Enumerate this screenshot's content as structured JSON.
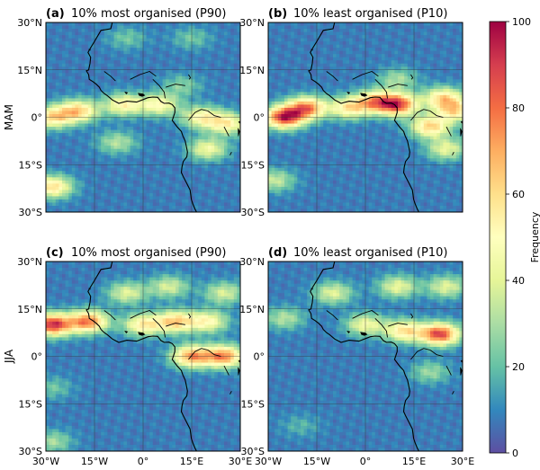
{
  "chart_data": {
    "type": "heatmap",
    "colormap": "Spectral_r",
    "colorbar": {
      "label": "Frequency",
      "min": 0,
      "max": 100,
      "ticks": [
        0,
        20,
        40,
        60,
        80,
        100
      ]
    },
    "x_ticks": [
      "30°W",
      "15°W",
      "0°",
      "15°E",
      "30°E"
    ],
    "y_ticks": [
      "30°N",
      "15°N",
      "0°",
      "15°S",
      "30°S"
    ],
    "xlim": [
      -30,
      30
    ],
    "ylim": [
      -30,
      30
    ],
    "grid": true,
    "rows": [
      {
        "label": "MAM"
      },
      {
        "label": "JJA"
      }
    ],
    "panels": [
      {
        "tag": "(a)",
        "title": "10% most organised (P90)",
        "row": 0,
        "col": 0,
        "background": 8,
        "hotspots": [
          {
            "lon": -20,
            "lat": 2,
            "value": 62
          },
          {
            "lon": -6,
            "lat": 4,
            "value": 52
          },
          {
            "lon": 5,
            "lat": 4,
            "value": 50
          },
          {
            "lon": -28,
            "lat": 0,
            "value": 58
          },
          {
            "lon": 18,
            "lat": 0,
            "value": 50
          },
          {
            "lon": 26,
            "lat": -2,
            "value": 52
          },
          {
            "lon": 20,
            "lat": -10,
            "value": 45
          },
          {
            "lon": -28,
            "lat": -22,
            "value": 60
          },
          {
            "lon": -8,
            "lat": -8,
            "value": 32
          },
          {
            "lon": 12,
            "lat": 10,
            "value": 25
          },
          {
            "lon": -5,
            "lat": 25,
            "value": 22
          },
          {
            "lon": 15,
            "lat": 25,
            "value": 22
          }
        ]
      },
      {
        "tag": "(b)",
        "title": "10% least organised (P10)",
        "row": 0,
        "col": 1,
        "background": 8,
        "hotspots": [
          {
            "lon": -25,
            "lat": 0,
            "value": 92
          },
          {
            "lon": -18,
            "lat": 3,
            "value": 75
          },
          {
            "lon": 10,
            "lat": 4,
            "value": 85
          },
          {
            "lon": 3,
            "lat": 5,
            "value": 62
          },
          {
            "lon": -5,
            "lat": 3,
            "value": 55
          },
          {
            "lon": 24,
            "lat": 6,
            "value": 58
          },
          {
            "lon": 20,
            "lat": -3,
            "value": 62
          },
          {
            "lon": 28,
            "lat": 2,
            "value": 55
          },
          {
            "lon": 25,
            "lat": -10,
            "value": 42
          },
          {
            "lon": -28,
            "lat": -20,
            "value": 35
          },
          {
            "lon": 10,
            "lat": 12,
            "value": 30
          }
        ]
      },
      {
        "tag": "(c)",
        "title": "10% most organised (P90)",
        "row": 1,
        "col": 0,
        "background": 8,
        "hotspots": [
          {
            "lon": -28,
            "lat": 10,
            "value": 92
          },
          {
            "lon": -17,
            "lat": 11,
            "value": 78
          },
          {
            "lon": 0,
            "lat": 10,
            "value": 55
          },
          {
            "lon": 10,
            "lat": 11,
            "value": 62
          },
          {
            "lon": 20,
            "lat": 11,
            "value": 50
          },
          {
            "lon": 15,
            "lat": 0,
            "value": 72
          },
          {
            "lon": 25,
            "lat": 0,
            "value": 75
          },
          {
            "lon": -5,
            "lat": 20,
            "value": 40
          },
          {
            "lon": 8,
            "lat": 22,
            "value": 38
          },
          {
            "lon": 25,
            "lat": 20,
            "value": 38
          },
          {
            "lon": -28,
            "lat": -10,
            "value": 22
          },
          {
            "lon": -28,
            "lat": -27,
            "value": 30
          }
        ]
      },
      {
        "tag": "(d)",
        "title": "10% least organised (P10)",
        "row": 1,
        "col": 1,
        "background": 8,
        "hotspots": [
          {
            "lon": 23,
            "lat": 7,
            "value": 88
          },
          {
            "lon": 12,
            "lat": 8,
            "value": 58
          },
          {
            "lon": 0,
            "lat": 10,
            "value": 45
          },
          {
            "lon": -10,
            "lat": 20,
            "value": 40
          },
          {
            "lon": 10,
            "lat": 22,
            "value": 42
          },
          {
            "lon": 25,
            "lat": 22,
            "value": 40
          },
          {
            "lon": -25,
            "lat": 12,
            "value": 32
          },
          {
            "lon": 20,
            "lat": -5,
            "value": 28
          },
          {
            "lon": -20,
            "lat": -22,
            "value": 18
          }
        ]
      }
    ]
  }
}
